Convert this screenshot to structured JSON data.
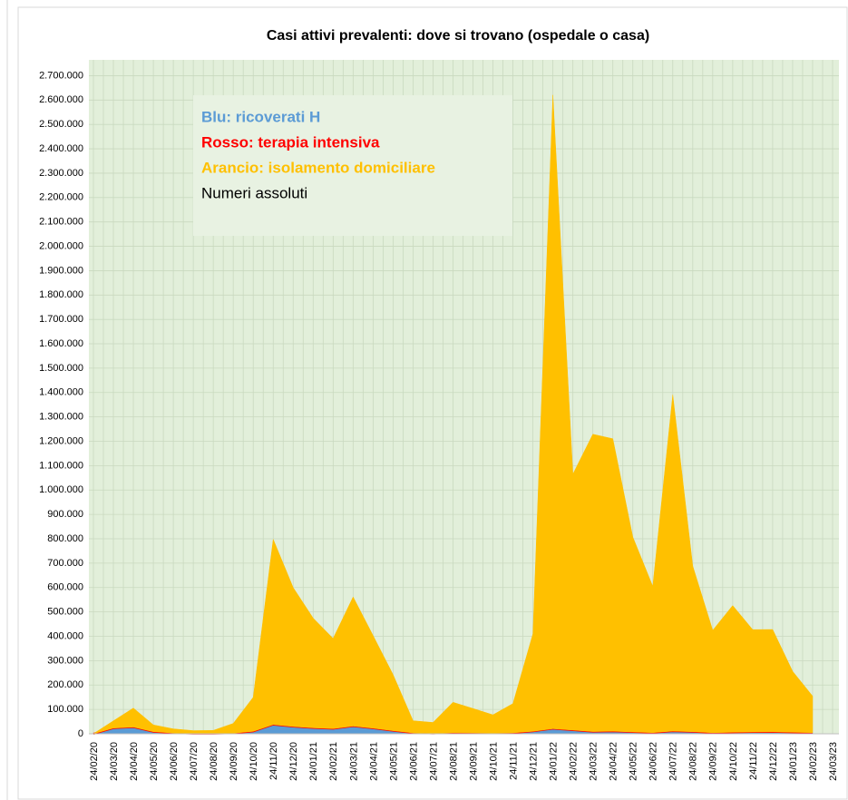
{
  "chart_data": {
    "type": "stacked-area",
    "title": "Casi attivi prevalenti: dove si trovano (ospedale o casa)",
    "categories": [
      "24/02/20",
      "24/03/20",
      "24/04/20",
      "24/05/20",
      "24/06/20",
      "24/07/20",
      "24/08/20",
      "24/09/20",
      "24/10/20",
      "24/11/20",
      "24/12/20",
      "24/01/21",
      "24/02/21",
      "24/03/21",
      "24/04/21",
      "24/05/21",
      "24/06/21",
      "24/07/21",
      "24/08/21",
      "24/09/21",
      "24/10/21",
      "24/11/21",
      "24/12/21",
      "24/01/22",
      "24/02/22",
      "24/03/22",
      "24/04/22",
      "24/05/22",
      "24/06/22",
      "24/07/22",
      "24/08/22",
      "24/09/22",
      "24/10/22",
      "24/11/22",
      "24/12/22",
      "24/01/23",
      "24/02/23",
      "24/03/23"
    ],
    "series": [
      {
        "name": "Blu: ricoverati H",
        "color": "#5b9bd5",
        "values": [
          0,
          20000,
          25000,
          8000,
          3000,
          900,
          800,
          2300,
          9000,
          34000,
          27000,
          22000,
          19000,
          28000,
          20000,
          11000,
          3000,
          1300,
          3800,
          3200,
          2400,
          3500,
          9000,
          19000,
          14000,
          8500,
          10000,
          7000,
          4500,
          10500,
          8000,
          4200,
          6000,
          7000,
          7500,
          6000,
          4500,
          null
        ]
      },
      {
        "name": "Rosso: terapia intensiva",
        "color": "#ff0000",
        "values": [
          0,
          3200,
          2500,
          500,
          150,
          50,
          60,
          200,
          900,
          3800,
          2700,
          2400,
          2100,
          3400,
          2800,
          1600,
          500,
          160,
          450,
          480,
          350,
          450,
          1000,
          1700,
          1100,
          500,
          450,
          300,
          200,
          400,
          350,
          200,
          200,
          250,
          300,
          250,
          150,
          null
        ]
      },
      {
        "name": "Arancio: isolamento domiciliare",
        "color": "#ffc000",
        "values": [
          300,
          30000,
          78000,
          28000,
          17000,
          12000,
          13000,
          40000,
          140000,
          760000,
          570000,
          450000,
          370000,
          530000,
          380000,
          230000,
          50000,
          45000,
          125000,
          100000,
          75000,
          120000,
          400000,
          2600000,
          1050000,
          1220000,
          1200000,
          800000,
          600000,
          1380000,
          680000,
          420000,
          520000,
          420000,
          420000,
          250000,
          150000,
          null
        ]
      }
    ],
    "annotations": [
      "Numeri assoluti"
    ],
    "ylim": [
      0,
      2750000
    ],
    "yticks": [
      0,
      {
        "value": 100000,
        "label": "100.000"
      },
      {
        "value": 200000,
        "label": "200.000"
      },
      {
        "value": 300000,
        "label": "300.000"
      },
      {
        "value": 400000,
        "label": "400.000"
      },
      {
        "value": 500000,
        "label": "500.000"
      },
      {
        "value": 600000,
        "label": "600.000"
      },
      {
        "value": 700000,
        "label": "700.000"
      },
      {
        "value": 800000,
        "label": "800.000"
      },
      {
        "value": 900000,
        "label": "900.000"
      },
      {
        "value": 1000000,
        "label": "1.000.000"
      },
      {
        "value": 1100000,
        "label": "1.100.000"
      },
      {
        "value": 1200000,
        "label": "1.200.000"
      },
      {
        "value": 1300000,
        "label": "1.300.000"
      },
      {
        "value": 1400000,
        "label": "1.400.000"
      },
      {
        "value": 1500000,
        "label": "1.500.000"
      },
      {
        "value": 1600000,
        "label": "1.600.000"
      },
      {
        "value": 1700000,
        "label": "1.700.000"
      },
      {
        "value": 1800000,
        "label": "1.800.000"
      },
      {
        "value": 1900000,
        "label": "1.900.000"
      },
      {
        "value": 2000000,
        "label": "2.000.000"
      },
      {
        "value": 2100000,
        "label": "2.100.000"
      },
      {
        "value": 2200000,
        "label": "2.200.000"
      },
      {
        "value": 2300000,
        "label": "2.300.000"
      },
      {
        "value": 2400000,
        "label": "2.400.000"
      },
      {
        "value": 2500000,
        "label": "2.500.000"
      },
      {
        "value": 2600000,
        "label": "2.600.000"
      },
      {
        "value": 2700000,
        "label": "2.700.000"
      }
    ],
    "grid": true,
    "plot_background": "#e2efda"
  }
}
